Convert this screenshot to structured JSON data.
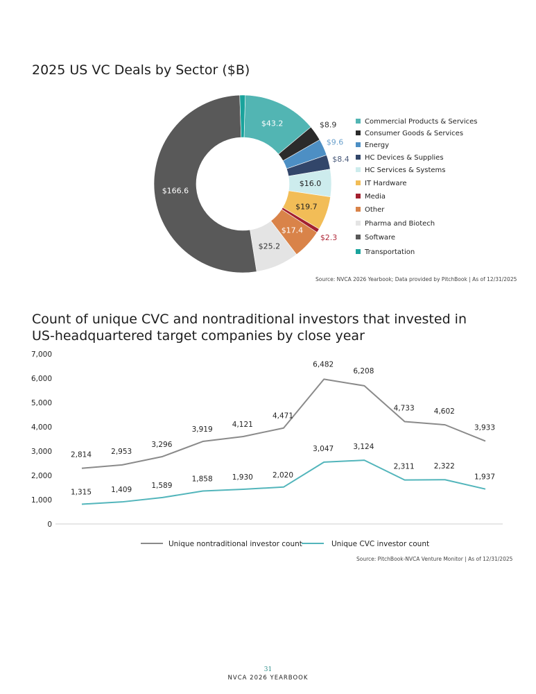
{
  "page": {
    "number": "31",
    "footer": "NVCA 2026 YEARBOOK"
  },
  "chart_data": [
    {
      "type": "pie",
      "variant": "donut",
      "title": "2025 US VC Deals by Sector ($B)",
      "source": "Source: NVCA 2026 Yearbook; Data provided by PitchBook | As of 12/31/2025",
      "legend_position": "right",
      "slices": [
        {
          "name": "Commercial Products & Services",
          "value": 43.2,
          "label": "$43.2",
          "color": "#52b5b3"
        },
        {
          "name": "Consumer Goods & Services",
          "value": 8.9,
          "label": "$8.9",
          "color": "#2b2b2b"
        },
        {
          "name": "Energy",
          "value": 9.6,
          "label": "$9.6",
          "color": "#4d8fc4"
        },
        {
          "name": "HC Devices & Supplies",
          "value": 8.4,
          "label": "$8.4",
          "color": "#32466a"
        },
        {
          "name": "HC Services & Systems",
          "value": 16.0,
          "label": "$16.0",
          "color": "#cdeced"
        },
        {
          "name": "IT Hardware",
          "value": 19.7,
          "label": "$19.7",
          "color": "#f2bd57"
        },
        {
          "name": "Media",
          "value": 2.3,
          "label": "$2.3",
          "color": "#a3202f"
        },
        {
          "name": "Other",
          "value": 17.4,
          "label": "$17.4",
          "color": "#d98349"
        },
        {
          "name": "Pharma and Biotech",
          "value": 25.2,
          "label": "$25.2",
          "color": "#e4e4e4"
        },
        {
          "name": "Software",
          "value": 166.6,
          "label": "$166.6",
          "color": "#595959"
        },
        {
          "name": "Transportation",
          "value": 3.2,
          "label": "",
          "color": "#1aa39c"
        }
      ]
    },
    {
      "type": "line",
      "title": "Count of unique CVC and nontraditional investors that invested in US-headquartered target companies by close year",
      "source": "Source: PitchBook-NVCA Venture Monitor | As of 12/31/2025",
      "ylim": [
        0,
        7000
      ],
      "yticks": [
        "0",
        "1,000",
        "2,000",
        "3,000",
        "4,000",
        "5,000",
        "6,000",
        "7,000"
      ],
      "grid": false,
      "legend_position": "bottom",
      "series": [
        {
          "name": "Unique nontraditional investor count",
          "color": "#8a8a8a",
          "values": [
            2814,
            2953,
            3296,
            3919,
            4121,
            4471,
            6482,
            6208,
            4733,
            4602,
            3933
          ],
          "labels": [
            "2,814",
            "2,953",
            "3,296",
            "3,919",
            "4,121",
            "4,471",
            "6,482",
            "6,208",
            "4,733",
            "4,602",
            "3,933"
          ]
        },
        {
          "name": "Unique CVC investor count",
          "color": "#52b5bb",
          "values": [
            1315,
            1409,
            1589,
            1858,
            1930,
            2020,
            3047,
            3124,
            2311,
            2322,
            1937
          ],
          "labels": [
            "1,315",
            "1,409",
            "1,589",
            "1,858",
            "1,930",
            "2,020",
            "3,047",
            "3,124",
            "2,311",
            "2,322",
            "1,937"
          ]
        }
      ]
    }
  ]
}
